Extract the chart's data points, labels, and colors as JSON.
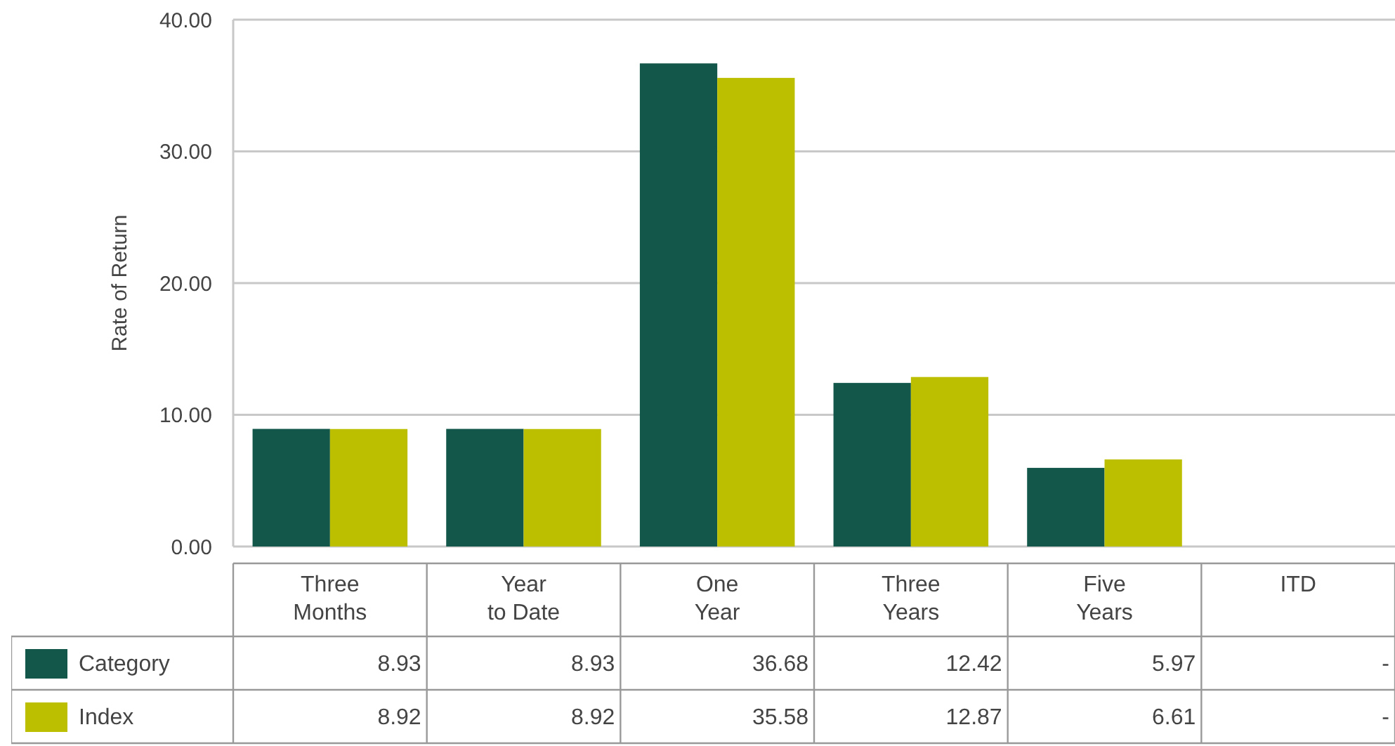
{
  "chart_data": {
    "type": "bar",
    "ylabel": "Rate of Return",
    "categories": [
      "Three Months",
      "Year to Date",
      "One Year",
      "Three Years",
      "Five Years",
      "ITD"
    ],
    "series": [
      {
        "name": "Category",
        "color": "#12574a",
        "values": [
          8.93,
          8.93,
          36.68,
          12.42,
          5.97,
          null
        ],
        "value_labels": [
          "8.93",
          "8.93",
          "36.68",
          "12.42",
          "5.97",
          "-"
        ]
      },
      {
        "name": "Index",
        "color": "#bcbf00",
        "values": [
          8.92,
          8.92,
          35.58,
          12.87,
          6.61,
          null
        ],
        "value_labels": [
          "8.92",
          "8.92",
          "35.58",
          "12.87",
          "6.61",
          "-"
        ]
      }
    ],
    "ylim": [
      0,
      40
    ],
    "yticks": [
      {
        "value": 0,
        "label": "0.00"
      },
      {
        "value": 10,
        "label": "10.00"
      },
      {
        "value": 20,
        "label": "20.00"
      },
      {
        "value": 30,
        "label": "30.00"
      },
      {
        "value": 40,
        "label": "40.00"
      }
    ],
    "grid": "y",
    "legend": "bottom"
  }
}
